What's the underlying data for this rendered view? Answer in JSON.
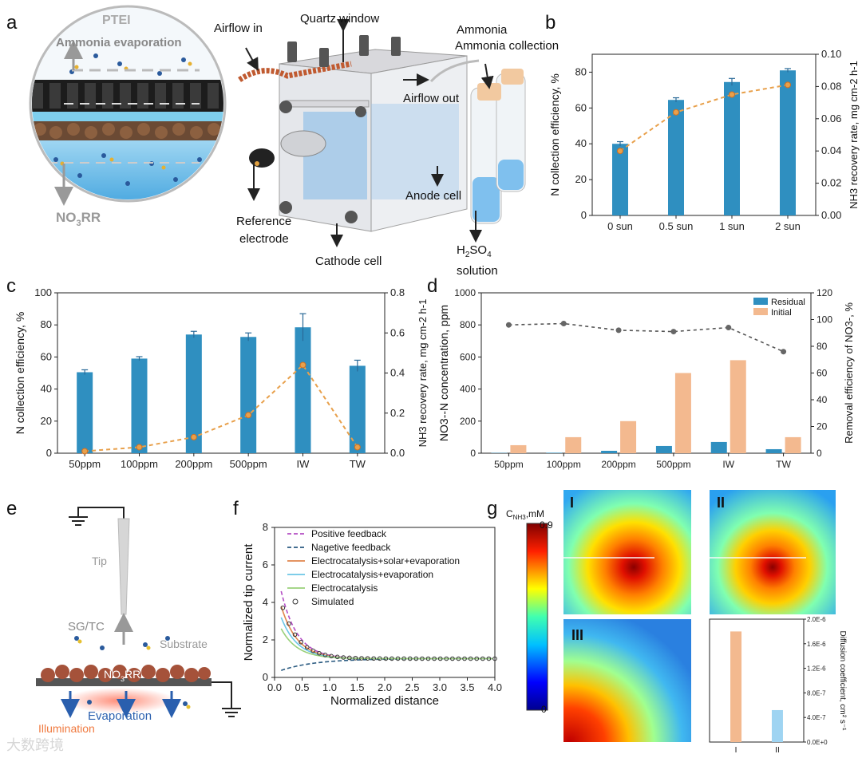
{
  "panels": {
    "a": "a",
    "b": "b",
    "c": "c",
    "d": "d",
    "e": "e",
    "f": "f",
    "g": "g"
  },
  "a": {
    "ptei": "PTEI",
    "ammonia_evap": "Ammonia evaporation",
    "no3rr": "NO3RR",
    "airflow_in": "Airflow in",
    "quartz": "Quartz window",
    "ammonia_collection": "Ammonia collection",
    "airflow_out": "Airflow out",
    "reference1": "Reference",
    "reference2": "electrode",
    "cathode": "Cathode cell",
    "anode": "Anode cell",
    "h2so4": "H2SO4",
    "solution": "solution"
  },
  "e": {
    "tip": "Tip",
    "sgtc": "SG/TC",
    "substrate": "Substrate",
    "no3rr": "NO3RR",
    "evaporation": "Evaporation",
    "illumination": "Illumination"
  },
  "g": {
    "cnh3_label": "C",
    "cnh3_sub": "NH3",
    "cnh3_unit": ",mM",
    "scale_max": "0.9",
    "scale_min": "0",
    "map_labels": [
      "I",
      "II",
      "III"
    ],
    "diff_ylabel": "Diffusion coefficient, cm² s⁻¹"
  },
  "watermark": "大数跨境",
  "colors": {
    "bar": "#2f8fc0",
    "line": "#e8a04b",
    "initial": "#f3b98f",
    "residual": "#2f8fc0",
    "gray": "#666666"
  },
  "chart_data": [
    {
      "id": "b",
      "type": "bar",
      "categories": [
        "0 sun",
        "0.5 sun",
        "1 sun",
        "2 sun"
      ],
      "series": [
        {
          "name": "N collection efficiency",
          "values": [
            40,
            64.5,
            74.5,
            81
          ],
          "errors": [
            1.2,
            1.2,
            2,
            1
          ]
        },
        {
          "name": "NH3 recovery rate",
          "type": "line",
          "axis": "right",
          "values": [
            0.04,
            0.064,
            0.075,
            0.081
          ]
        }
      ],
      "ylabel": "N collection efficiency, %",
      "ylabel2": "NH3 recovery rate, mg cm-2 h-1",
      "ylim": [
        0,
        90
      ],
      "yticks": [
        0,
        20,
        40,
        60,
        80
      ],
      "ylim2": [
        0,
        0.1
      ],
      "yticks2": [
        "0.00",
        "0.02",
        "0.04",
        "0.06",
        "0.08",
        "0.10"
      ]
    },
    {
      "id": "c",
      "type": "bar",
      "categories": [
        "50ppm",
        "100ppm",
        "200ppm",
        "500ppm",
        "IW",
        "TW"
      ],
      "series": [
        {
          "name": "N collection efficiency",
          "values": [
            50.5,
            59,
            74,
            72.5,
            78.5,
            54.5
          ],
          "errors": [
            1.5,
            1.2,
            2,
            2.5,
            8.5,
            3.5
          ]
        },
        {
          "name": "NH3 recovery rate",
          "type": "line",
          "axis": "right",
          "values": [
            0.01,
            0.03,
            0.08,
            0.19,
            0.44,
            0.03
          ]
        }
      ],
      "ylabel": "N collection efficiency, %",
      "ylabel2": "NH3 recovery rate, mg cm-2 h-1",
      "ylim": [
        0,
        100
      ],
      "yticks": [
        0,
        20,
        40,
        60,
        80,
        100
      ],
      "ylim2": [
        0,
        0.8
      ],
      "yticks2": [
        "0.0",
        "0.2",
        "0.4",
        "0.6",
        "0.8"
      ]
    },
    {
      "id": "d",
      "type": "bar",
      "categories": [
        "50ppm",
        "100ppm",
        "200ppm",
        "500ppm",
        "IW",
        "TW"
      ],
      "series": [
        {
          "name": "Residual",
          "values": [
            2,
            3,
            15,
            45,
            70,
            25
          ]
        },
        {
          "name": "Initial",
          "values": [
            50,
            100,
            200,
            500,
            580,
            100
          ]
        },
        {
          "name": "Removal efficiency",
          "type": "line",
          "axis": "right",
          "values": [
            96,
            97,
            92,
            91,
            94,
            76
          ]
        }
      ],
      "ylabel": "NO3--N concentration, ppm",
      "ylabel2": "Removal efficiency of NO3-, %",
      "ylim": [
        0,
        1000
      ],
      "yticks": [
        0,
        200,
        400,
        600,
        800,
        1000
      ],
      "ylim2": [
        0,
        120
      ],
      "yticks2": [
        "0",
        "20",
        "40",
        "60",
        "80",
        "100",
        "120"
      ]
    },
    {
      "id": "f",
      "type": "line",
      "title": "",
      "xlabel": "Normalized distance",
      "ylabel": "Normalized tip current",
      "xlim": [
        0,
        4
      ],
      "ylim": [
        0,
        8
      ],
      "xticks": [
        "0.0",
        "0.5",
        "1.0",
        "1.5",
        "2.0",
        "2.5",
        "3.0",
        "3.5",
        "4.0"
      ],
      "yticks": [
        "0",
        "2",
        "4",
        "6",
        "8"
      ],
      "series": [
        {
          "name": "Positive feedback",
          "color": "#b44fc4",
          "dash": true,
          "y0": 4.6
        },
        {
          "name": "Nagetive feedback",
          "color": "#2a5a80",
          "dash": true,
          "y0": 0.3
        },
        {
          "name": "Electrocatalysis+solar+evaporation",
          "color": "#e0854c",
          "dash": false,
          "y0": 3.8
        },
        {
          "name": "Electrocatalysis+evaporation",
          "color": "#6cc6e6",
          "dash": false,
          "y0": 3.2
        },
        {
          "name": "Electrocatalysis",
          "color": "#9ad07a",
          "dash": false,
          "y0": 2.6
        },
        {
          "name": "Simulated",
          "color": "#333333",
          "marker": "circle",
          "y0": 4.0
        }
      ]
    },
    {
      "id": "g-bar",
      "type": "bar",
      "categories": [
        "I",
        "II"
      ],
      "values": [
        1.8e-06,
        5.2e-07
      ],
      "ylabel": "Diffusion coefficient, cm² s⁻¹",
      "ylim": [
        0,
        2e-06
      ],
      "yticks": [
        "0.0E+0",
        "4.0E-7",
        "8.0E-7",
        "1.2E-6",
        "1.6E-6",
        "2.0E-6"
      ]
    }
  ]
}
